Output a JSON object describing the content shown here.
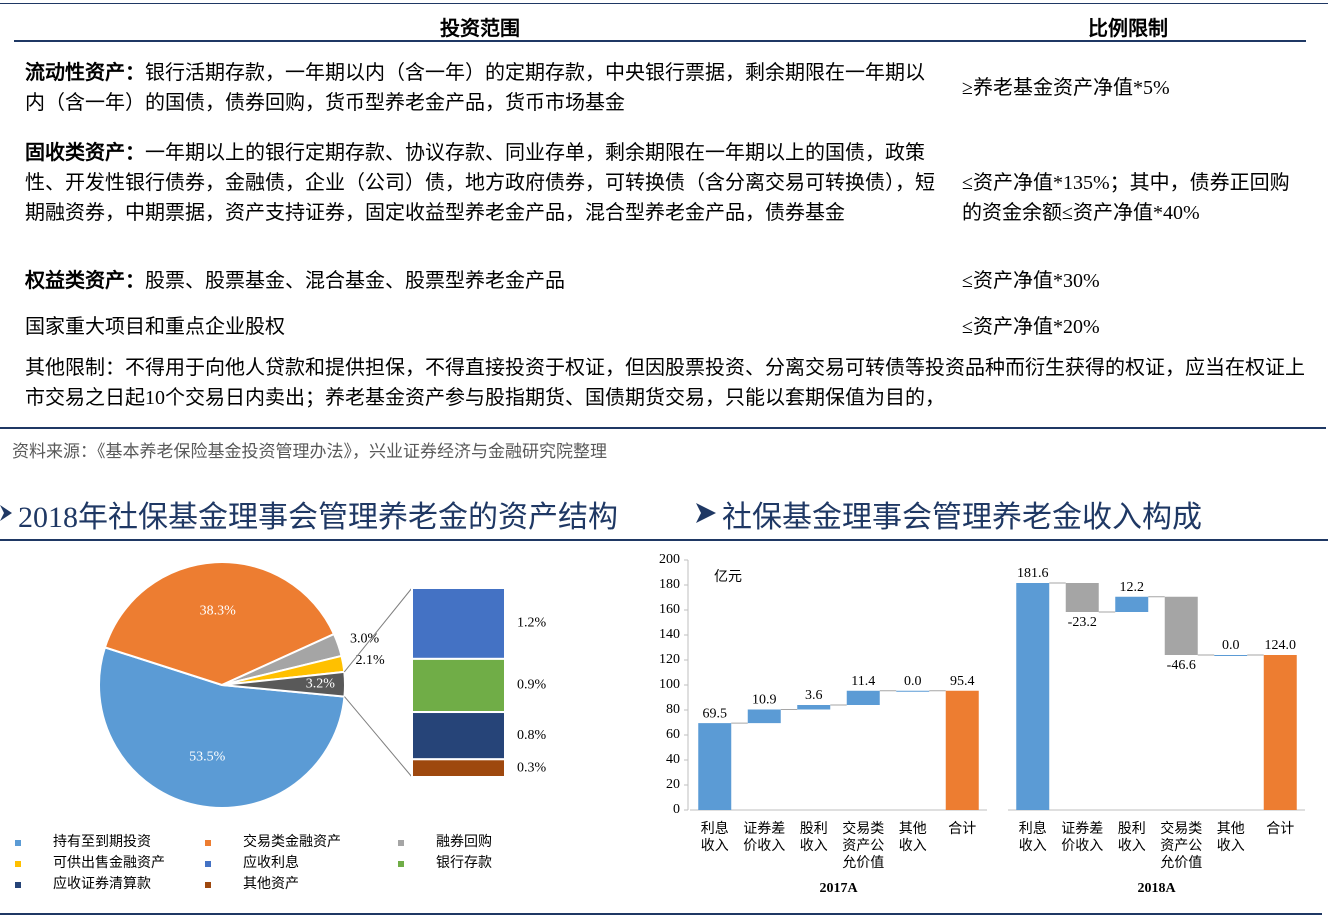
{
  "table": {
    "headers": [
      "投资范围",
      "比例限制"
    ],
    "rows": [
      {
        "label": "流动性资产：",
        "scope": "银行活期存款，一年期以内（含一年）的定期存款，中央银行票据，剩余期限在一年期以内（含一年）的国债，债券回购，货币型养老金产品，货币市场基金",
        "limit": "≥养老基金资产净值*5%"
      },
      {
        "label": "固收类资产：",
        "scope": "一年期以上的银行定期存款、协议存款、同业存单，剩余期限在一年期以上的国债，政策性、开发性银行债券，金融债，企业（公司）债，地方政府债券，可转换债（含分离交易可转换债），短期融资券，中期票据，资产支持证券，固定收益型养老金产品，混合型养老金产品，债券基金",
        "limit": "≤资产净值*135%；其中，债券正回购的资金余额≤资产净值*40%"
      },
      {
        "label": "权益类资产：",
        "scope": "股票、股票基金、混合基金、股票型养老金产品",
        "limit": "≤资产净值*30%"
      },
      {
        "scope": "国家重大项目和重点企业股权",
        "limit": "≤资产净值*20%"
      }
    ],
    "note": "其他限制：不得用于向他人贷款和提供担保，不得直接投资于权证，但因股票投资、分离交易可转债等投资品种而衍生获得的权证，应当在权证上市交易之日起10个交易日内卖出；养老基金资产参与股指期货、国债期货交易，只能以套期保值为目的，"
  },
  "source": "资料来源：《基本养老保险基金投资管理办法》，兴业证券经济与金融研究院整理",
  "chart_data": [
    {
      "type": "bar-of-pie",
      "title": "2018年社保基金理事会管理养老金的资产结构",
      "pie_series": [
        {
          "name": "持有至到期投资",
          "color": "#5b9bd5",
          "value": 53.5,
          "value_label": "53.5%"
        },
        {
          "name": "交易类金融资产",
          "color": "#ed7d31",
          "value": 38.3,
          "value_label": "38.3%"
        },
        {
          "name": "融券回购",
          "color": "#a5a5a5",
          "value": 3.0,
          "value_label": "3.0%"
        },
        {
          "name": "可供出售金融资产",
          "color": "#ffc000",
          "value": 2.1,
          "value_label": "2.1%"
        }
      ],
      "split": {
        "value": 3.2,
        "value_label": "3.2%",
        "color": "#595959",
        "series": [
          {
            "name": "应收利息",
            "color": "#4472c4",
            "value": 1.2,
            "value_label": "1.2%"
          },
          {
            "name": "银行存款",
            "color": "#70ad47",
            "value": 0.9,
            "value_label": "0.9%"
          },
          {
            "name": "应收证券清算款",
            "color": "#264478",
            "value": 0.8,
            "value_label": "0.8%"
          },
          {
            "name": "其他资产",
            "color": "#9e480e",
            "value": 0.3,
            "value_label": "0.3%"
          }
        ]
      }
    },
    {
      "type": "waterfall",
      "title": "社保基金理事会管理养老金收入构成",
      "y_label": "亿元",
      "ylim": [
        0,
        200
      ],
      "yticks": [
        0,
        20,
        40,
        60,
        80,
        100,
        120,
        140,
        160,
        180,
        200
      ],
      "categories": [
        "利息收入",
        "证券差价收入",
        "股利收入",
        "交易类资产公允价值",
        "其他收入",
        "合计"
      ],
      "bar_kinds": [
        "step",
        "step",
        "step",
        "step",
        "step",
        "total"
      ],
      "colors": {
        "increase": "#5b9bd5",
        "decrease": "#a5a5a5",
        "total": "#ed7d31"
      },
      "panels": [
        {
          "label": "2017A",
          "values": [
            69.5,
            10.9,
            3.6,
            11.4,
            0.0,
            95.4
          ],
          "value_labels": [
            "69.5",
            "10.9",
            "3.6",
            "11.4",
            "0.0",
            "95.4"
          ]
        },
        {
          "label": "2018A",
          "values": [
            181.6,
            -23.2,
            12.2,
            -46.6,
            0.0,
            124.0
          ],
          "value_labels": [
            "181.6",
            "-23.2",
            "12.2",
            "-46.6",
            "0.0",
            "124.0"
          ]
        }
      ]
    }
  ]
}
